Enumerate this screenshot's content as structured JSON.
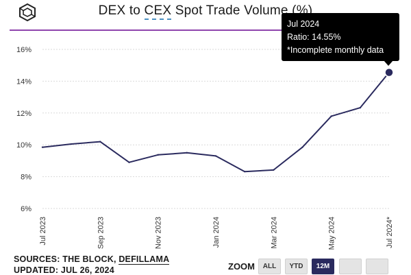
{
  "title": {
    "prefix": "DEX to ",
    "underlined": "CEX",
    "suffix": " Spot Trade Volume (%)"
  },
  "chart_data": {
    "type": "line",
    "title": "DEX to CEX Spot Trade Volume (%)",
    "xlabel": "",
    "ylabel": "",
    "ylim": [
      6,
      16
    ],
    "yticks": [
      6,
      8,
      10,
      12,
      14,
      16
    ],
    "ytick_labels": [
      "6%",
      "8%",
      "10%",
      "12%",
      "14%",
      "16%"
    ],
    "x": [
      "Jul 2023",
      "Aug 2023",
      "Sep 2023",
      "Oct 2023",
      "Nov 2023",
      "Dec 2023",
      "Jan 2024",
      "Feb 2024",
      "Mar 2024",
      "Apr 2024",
      "May 2024",
      "Jun 2024",
      "Jul 2024*"
    ],
    "xtick_labels": [
      "Jul 2023",
      "Sep 2023",
      "Nov 2023",
      "Jan 2024",
      "Mar 2024",
      "May 2024",
      "Jul 2024*"
    ],
    "series": [
      {
        "name": "Ratio",
        "color": "#2a2a5e",
        "values": [
          9.85,
          10.05,
          10.2,
          8.9,
          9.37,
          9.5,
          9.3,
          8.32,
          8.42,
          9.85,
          11.8,
          12.33,
          14.55
        ]
      }
    ],
    "grid": true,
    "legend": "none"
  },
  "tooltip": {
    "date": "Jul 2024",
    "ratio": "Ratio: 14.55%",
    "note": "*Incomplete monthly data"
  },
  "footer": {
    "sources_prefix": "SOURCES: THE BLOCK, ",
    "sources_link": "DEFILLAMA",
    "updated": "UPDATED: JUL 26, 2024"
  },
  "zoom": {
    "label": "ZOOM",
    "buttons": [
      "ALL",
      "YTD",
      "12M",
      "",
      ""
    ],
    "active": "12M"
  },
  "colors": {
    "line": "#2a2a5e",
    "accent": "#8e44ad",
    "grid": "#d9d9d9"
  }
}
